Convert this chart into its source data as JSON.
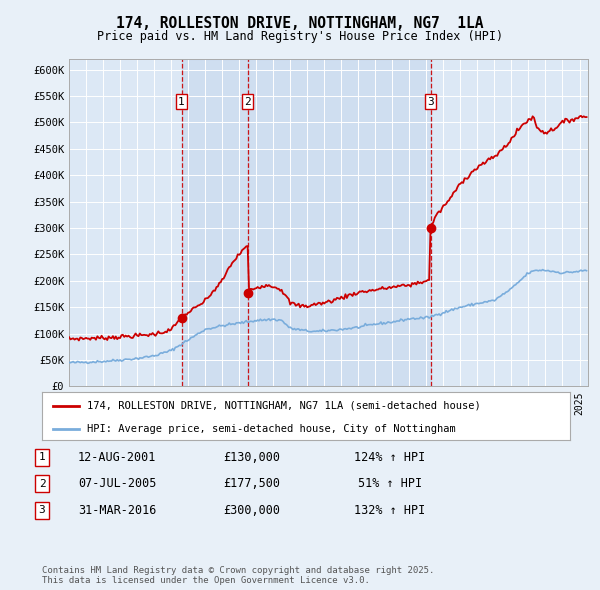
{
  "title": "174, ROLLESTON DRIVE, NOTTINGHAM, NG7  1LA",
  "subtitle": "Price paid vs. HM Land Registry's House Price Index (HPI)",
  "background_color": "#e8f0f8",
  "plot_bg_color": "#dce8f5",
  "ylim": [
    0,
    620000
  ],
  "yticks": [
    0,
    50000,
    100000,
    150000,
    200000,
    250000,
    300000,
    350000,
    400000,
    450000,
    500000,
    550000,
    600000
  ],
  "ytick_labels": [
    "£0",
    "£50K",
    "£100K",
    "£150K",
    "£200K",
    "£250K",
    "£300K",
    "£350K",
    "£400K",
    "£450K",
    "£500K",
    "£550K",
    "£600K"
  ],
  "sale_dates": [
    "2001-08-12",
    "2005-07-07",
    "2016-03-31"
  ],
  "sale_prices": [
    130000,
    177500,
    300000
  ],
  "sale_labels": [
    "1",
    "2",
    "3"
  ],
  "legend_line1": "174, ROLLESTON DRIVE, NOTTINGHAM, NG7 1LA (semi-detached house)",
  "legend_line2": "HPI: Average price, semi-detached house, City of Nottingham",
  "table_data": [
    [
      "1",
      "12-AUG-2001",
      "£130,000",
      "124% ↑ HPI"
    ],
    [
      "2",
      "07-JUL-2005",
      "£177,500",
      "51% ↑ HPI"
    ],
    [
      "3",
      "31-MAR-2016",
      "£300,000",
      "132% ↑ HPI"
    ]
  ],
  "footer": "Contains HM Land Registry data © Crown copyright and database right 2025.\nThis data is licensed under the Open Government Licence v3.0.",
  "red_color": "#cc0000",
  "blue_color": "#7aaddc",
  "dashed_color": "#cc0000",
  "shade_color": "#c8d8ee"
}
